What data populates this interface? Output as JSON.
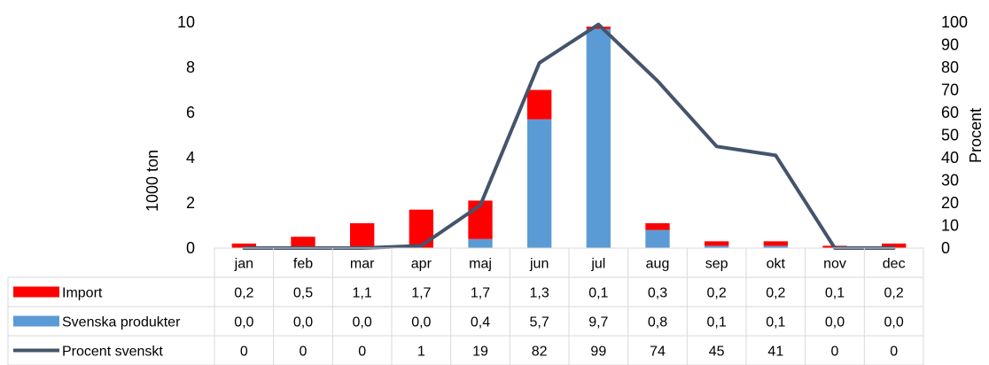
{
  "chart_data": {
    "type": "bar",
    "stacked": true,
    "categories": [
      "jan",
      "feb",
      "mar",
      "apr",
      "maj",
      "jun",
      "jul",
      "aug",
      "sep",
      "okt",
      "nov",
      "dec"
    ],
    "series": [
      {
        "name": "Import",
        "type": "bar",
        "axis": "left",
        "color": "#ff0000",
        "values": [
          0.2,
          0.5,
          1.1,
          1.7,
          1.7,
          1.3,
          0.1,
          0.3,
          0.2,
          0.2,
          0.1,
          0.2
        ],
        "labels": [
          "0,2",
          "0,5",
          "1,1",
          "1,7",
          "1,7",
          "1,3",
          "0,1",
          "0,3",
          "0,2",
          "0,2",
          "0,1",
          "0,2"
        ]
      },
      {
        "name": "Svenska produkter",
        "type": "bar",
        "axis": "left",
        "color": "#5b9bd5",
        "values": [
          0.0,
          0.0,
          0.0,
          0.0,
          0.4,
          5.7,
          9.7,
          0.8,
          0.1,
          0.1,
          0.0,
          0.0
        ],
        "labels": [
          "0,0",
          "0,0",
          "0,0",
          "0,0",
          "0,4",
          "5,7",
          "9,7",
          "0,8",
          "0,1",
          "0,1",
          "0,0",
          "0,0"
        ]
      },
      {
        "name": "Procent svenskt",
        "type": "line",
        "axis": "right",
        "color": "#44546a",
        "values": [
          0,
          0,
          0,
          1,
          19,
          82,
          99,
          74,
          45,
          41,
          0,
          0
        ],
        "labels": [
          "0",
          "0",
          "0",
          "1",
          "19",
          "82",
          "99",
          "74",
          "45",
          "41",
          "0",
          "0"
        ]
      }
    ],
    "ylabel": "1000 ton",
    "ylim": [
      0,
      10
    ],
    "yticks": [
      "0",
      "2",
      "4",
      "6",
      "8",
      "10"
    ],
    "y2label": "Procent",
    "y2lim": [
      0,
      100
    ],
    "y2ticks": [
      "0",
      "10",
      "20",
      "30",
      "40",
      "50",
      "60",
      "70",
      "80",
      "90",
      "100"
    ],
    "legend": "data-table",
    "grid": false
  }
}
